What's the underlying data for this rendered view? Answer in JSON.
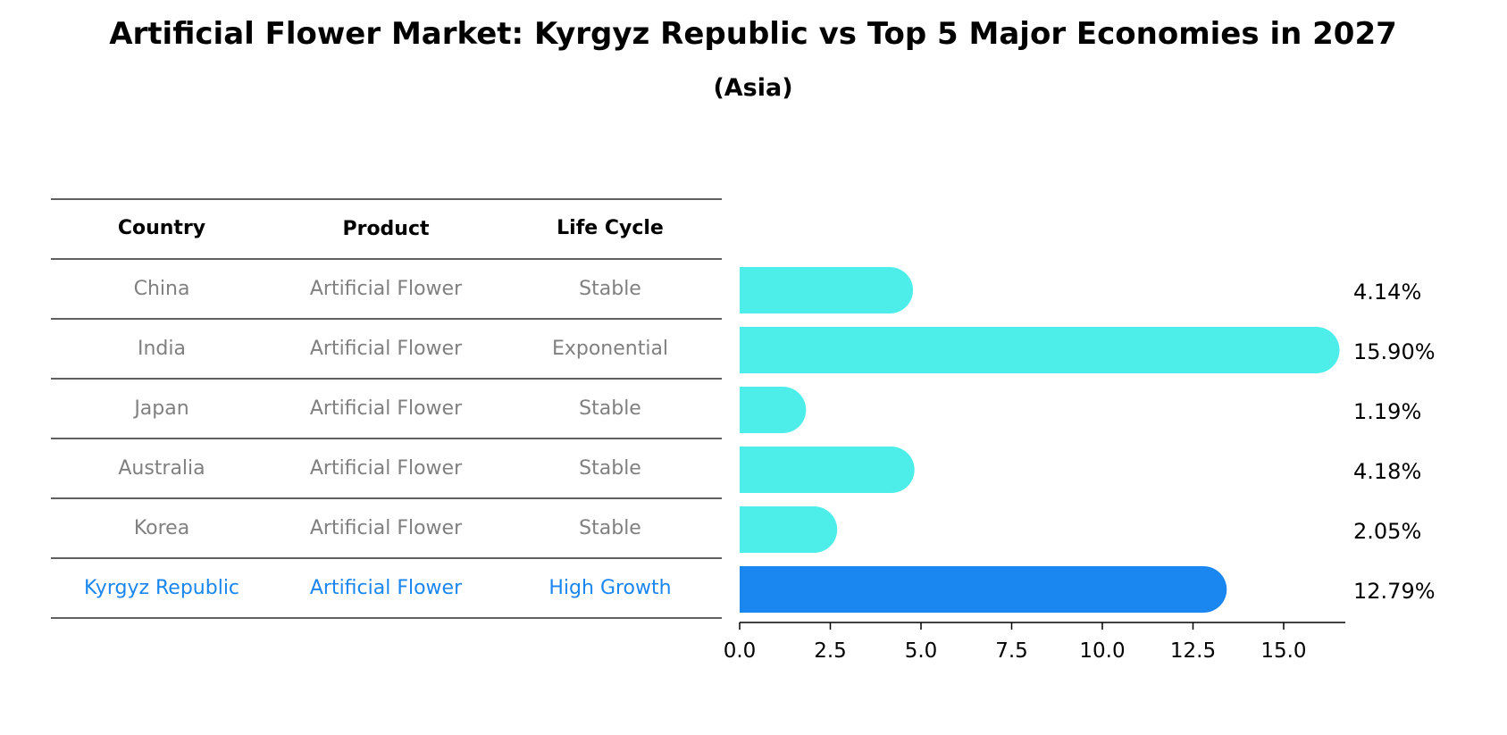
{
  "chart_data": {
    "type": "bar",
    "orientation": "horizontal",
    "title": "Artificial Flower Market: Kyrgyz Republic vs Top 5 Major Economies in 2027",
    "subtitle": "(Asia)",
    "xlabel": "",
    "ylabel": "",
    "xlim": [
      0,
      16.7
    ],
    "xticks": [
      "0.0",
      "2.5",
      "5.0",
      "7.5",
      "10.0",
      "12.5",
      "15.0"
    ],
    "xtick_values": [
      0,
      2.5,
      5.0,
      7.5,
      10.0,
      12.5,
      15.0
    ],
    "table_columns": [
      "Country",
      "Product",
      "Life Cycle"
    ],
    "rows": [
      {
        "country": "China",
        "product": "Artificial Flower",
        "life_cycle": "Stable",
        "value": 4.14,
        "label": "4.14%",
        "highlight": false
      },
      {
        "country": "India",
        "product": "Artificial Flower",
        "life_cycle": "Exponential",
        "value": 15.9,
        "label": "15.90%",
        "highlight": false
      },
      {
        "country": "Japan",
        "product": "Artificial Flower",
        "life_cycle": "Stable",
        "value": 1.19,
        "label": "1.19%",
        "highlight": false
      },
      {
        "country": "Australia",
        "product": "Artificial Flower",
        "life_cycle": "Stable",
        "value": 4.18,
        "label": "4.18%",
        "highlight": false
      },
      {
        "country": "Korea",
        "product": "Artificial Flower",
        "life_cycle": "Stable",
        "value": 2.05,
        "label": "2.05%",
        "highlight": false
      },
      {
        "country": "Kyrgyz Republic",
        "product": "Artificial Flower",
        "life_cycle": "High Growth",
        "value": 12.79,
        "label": "12.79%",
        "highlight": true
      }
    ],
    "colors": {
      "bar": "#4DEEEA",
      "bar_highlight": "#1A86F0",
      "text_muted": "#808080",
      "text_highlight": "#1A86F0",
      "text_default": "#000000",
      "rule": "#000000"
    }
  }
}
